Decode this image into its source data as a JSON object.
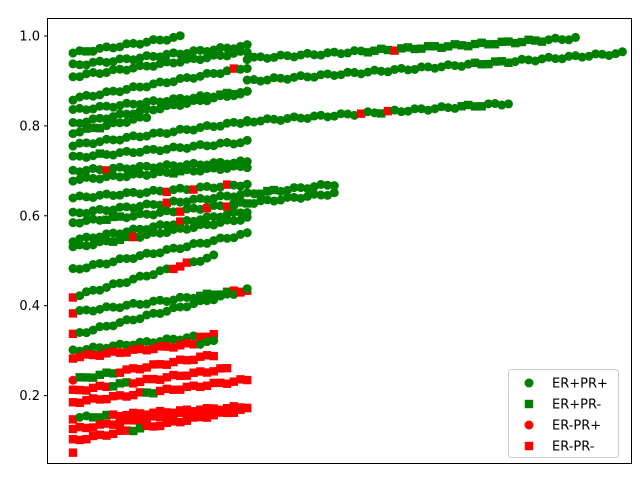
{
  "chart_data": {
    "type": "scatter",
    "title": "",
    "xlabel": "",
    "ylabel": "",
    "x_ticks_visible": false,
    "ylim": [
      0.05,
      1.04
    ],
    "yticks": [
      "0.2",
      "0.4",
      "0.6",
      "0.8",
      "1.0"
    ],
    "ytick_values": [
      0.2,
      0.4,
      0.6,
      0.8,
      1.0
    ],
    "legend_position": "lower-right",
    "series": [
      {
        "name": "ER+PR+",
        "marker": "circle",
        "color": "#008000"
      },
      {
        "name": "ER+PR-",
        "marker": "square",
        "color": "#008000"
      },
      {
        "name": "ER-PR+",
        "marker": "circle",
        "color": "#ff0000"
      },
      {
        "name": "ER-PR-",
        "marker": "square",
        "color": "#ff0000"
      }
    ],
    "lines": [
      {
        "x0": 0,
        "n": 17,
        "y0": 0.962,
        "y1": 0.998,
        "pat": "0,0,1,0,0,0,0,0,0,0,0,0,0,0,0,0,0"
      },
      {
        "x0": 0,
        "n": 27,
        "y0": 0.935,
        "y1": 0.978
      },
      {
        "x0": 0,
        "n": 27,
        "y0": 0.91,
        "y1": 0.965
      },
      {
        "x0": 0,
        "n": 27,
        "y0": 0.86,
        "y1": 0.93,
        "pat": "0,0,0,0,0,0,0,0,0,0,0,0,0,0,0,0,0,0,0,0,0,0,0,0,3,0,0"
      },
      {
        "x0": 0,
        "n": 27,
        "y0": 0.835,
        "y1": 0.875,
        "pat": "0,0,0,0,0,0,0,0,0,0,0,0,0,0,0,0,0,0,0,0,0,0,1,1,1,0,0"
      },
      {
        "x0": 0,
        "n": 27,
        "y0": 0.805,
        "y1": 0.875
      },
      {
        "x0": 0,
        "n": 12,
        "y0": 0.785,
        "y1": 0.82,
        "pat": "0,0,1,1,1,0,0,0,0,0,0,0"
      },
      {
        "x0": 0,
        "n": 27,
        "y0": 0.757,
        "y1": 0.81
      },
      {
        "x0": 0,
        "n": 27,
        "y0": 0.73,
        "y1": 0.765,
        "pat": "0,0,0,0,1,0,0,0,0,0,0,0,0,0,0,0,0,0,0,0,0,0,0,0,0,0,0"
      },
      {
        "x0": 0,
        "n": 27,
        "y0": 0.7,
        "y1": 0.72,
        "pat": "0,0,0,0,0,3,0,0,0,0,0,0,0,0,0,0,0,0,0,0,0,0,0,0,0,0,0"
      },
      {
        "x0": 0,
        "n": 27,
        "y0": 0.68,
        "y1": 0.71,
        "pat": "0,0,0,0,0,0,0,0,0,0,0,0,0,0,0,1,1,0,0,0,0,0,0,0,0,0,0"
      },
      {
        "x0": 0,
        "n": 27,
        "y0": 0.64,
        "y1": 0.67,
        "pat": "0,0,0,0,0,0,0,0,0,0,0,0,0,0,3,0,0,0,3,0,0,0,0,3,0,0,0"
      },
      {
        "x0": 0,
        "n": 40,
        "y0": 0.605,
        "y1": 0.67,
        "pat": "0,0,0,0,0,0,0,0,0,0,0,0,0,0,3,0,0,0,0,0,0,0,0,0,0,0,0,0,1,1,1,0,0,0,0,0,0,0,0,0"
      },
      {
        "x0": 0,
        "n": 40,
        "y0": 0.585,
        "y1": 0.65,
        "pat": "0,0,0,0,0,1,1,1,0,0,0,0,0,0,0,0,3,0,0,0,3,0,0,3,1,1,1,0,0,0,0,0,0,0,0,0,0,0,0,0"
      },
      {
        "x0": 0,
        "n": 27,
        "y0": 0.545,
        "y1": 0.61,
        "pat": "0,0,0,0,0,0,0,0,0,0,0,0,0,0,0,0,3,0,0,0,0,0,0,0,0,0,0"
      },
      {
        "x0": 0,
        "n": 27,
        "y0": 0.53,
        "y1": 0.595,
        "pat": "0,0,0,0,0,0,1,1,1,3,0,0,0,0,0,0,0,0,0,0,0,0,0,0,0,0,0"
      },
      {
        "x0": 0,
        "n": 27,
        "y0": 0.48,
        "y1": 0.56,
        "pat": "0,0,0,0,0,0,0,0,0,0,0,0,0,0,0,0,0,0,0,0,0,0,0,0,0,0,0"
      },
      {
        "x0": 0,
        "n": 22,
        "y0": 0.42,
        "y1": 0.51,
        "pat": "3,0,0,0,0,0,0,0,0,0,0,0,0,0,0,3,3,3,0,0,0,0"
      },
      {
        "x0": 0,
        "n": 27,
        "y0": 0.385,
        "y1": 0.435,
        "pat": "3,0,0,0,0,0,0,0,0,0,0,0,0,0,0,0,0,0,0,1,1,1,1,1,3,3,3"
      },
      {
        "x0": 0,
        "n": 27,
        "y0": 0.335,
        "y1": 0.435,
        "pat": "3,0,0,0,0,0,0,0,0,0,0,0,0,0,0,0,0,0,0,0,0,0,0,0,0,3,0"
      },
      {
        "x0": 0,
        "n": 22,
        "y0": 0.3,
        "y1": 0.335,
        "pat": "0,0,0,0,0,0,0,0,0,0,0,0,0,0,0,0,0,0,0,3,3,3"
      },
      {
        "x0": 0,
        "n": 22,
        "y0": 0.285,
        "y1": 0.32,
        "pat": "3,3,3,3,3,3,3,3,3,3,3,3,3,3,3,3,3,3,3,0,0,0"
      },
      {
        "x0": 0,
        "n": 22,
        "y0": 0.235,
        "y1": 0.29,
        "pat": "2,1,1,1,1,1,1,3,3,3,3,3,3,3,3,3,3,3,3,3,3,3"
      },
      {
        "x0": 0,
        "n": 24,
        "y0": 0.21,
        "y1": 0.26,
        "pat": "3,3,3,3,3,3,1,1,1,3,3,3,3,3,3,3,3,3,3,3,3,3,3,3"
      },
      {
        "x0": 0,
        "n": 27,
        "y0": 0.185,
        "y1": 0.235,
        "pat": "3,3,3,3,3,3,3,3,3,3,3,1,1,3,3,3,3,3,3,3,3,3,3,3,3,3,3"
      },
      {
        "x0": 0,
        "n": 27,
        "y0": 0.15,
        "y1": 0.175,
        "pat": "3,0,0,1,1,1,3,3,3,3,3,3,3,3,3,3,3,3,3,3,3,3,3,3,3,3,1"
      },
      {
        "x0": 0,
        "n": 22,
        "y0": 0.125,
        "y1": 0.17,
        "pat": "3,3,3,3,3,3,3,3,3,3,3,3,3,3,3,3,3,3,3,3,3,3"
      },
      {
        "x0": 0,
        "n": 27,
        "y0": 0.1,
        "y1": 0.17,
        "pat": "3,3,3,3,3,3,3,3,3,1,1,3,3,3,3,3,3,3,3,3,3,3,3,3,3,3,3"
      },
      {
        "x0": 0,
        "n": 1,
        "y0": 0.073,
        "y1": 0.073,
        "pat": "3"
      },
      {
        "x0": 26,
        "n": 50,
        "y0": 0.95,
        "y1": 0.995,
        "pat": "0,0,0,0,0,0,0,0,0,0,0,0,0,0,0,0,0,0,1,1,1,1,3,1,1,1,1,1,1,1,1,1,1,1,1,1,1,1,1,1,1,1,1,1,1,0,0,0,0,0"
      },
      {
        "x0": 26,
        "n": 78,
        "y0": 0.9,
        "y1": 0.985,
        "pat": "0,0,0,0,0,0,0,0,0,0,0,0,0,0,0,0,0,0,0,0,0,0,0,0,0,0,0,0,0,0,0,0,0,0,1,1,1,1,1,1,0,0,0,0,0,0,0,0,0,0,0,0,0,0,0,0,0,0,1,1,1,1,1,1,1,1,1,1,1,1,1,1,1,1,1,1,0,0"
      },
      {
        "x0": 26,
        "n": 40,
        "y0": 0.81,
        "y1": 0.85,
        "pat": "0,0,0,0,0,0,0,0,0,0,0,0,0,0,0,0,0,3,0,0,1,3,0,0,0,0,0,0,0,0,0,0,1,1,1,1,0,0,0,0"
      }
    ]
  }
}
